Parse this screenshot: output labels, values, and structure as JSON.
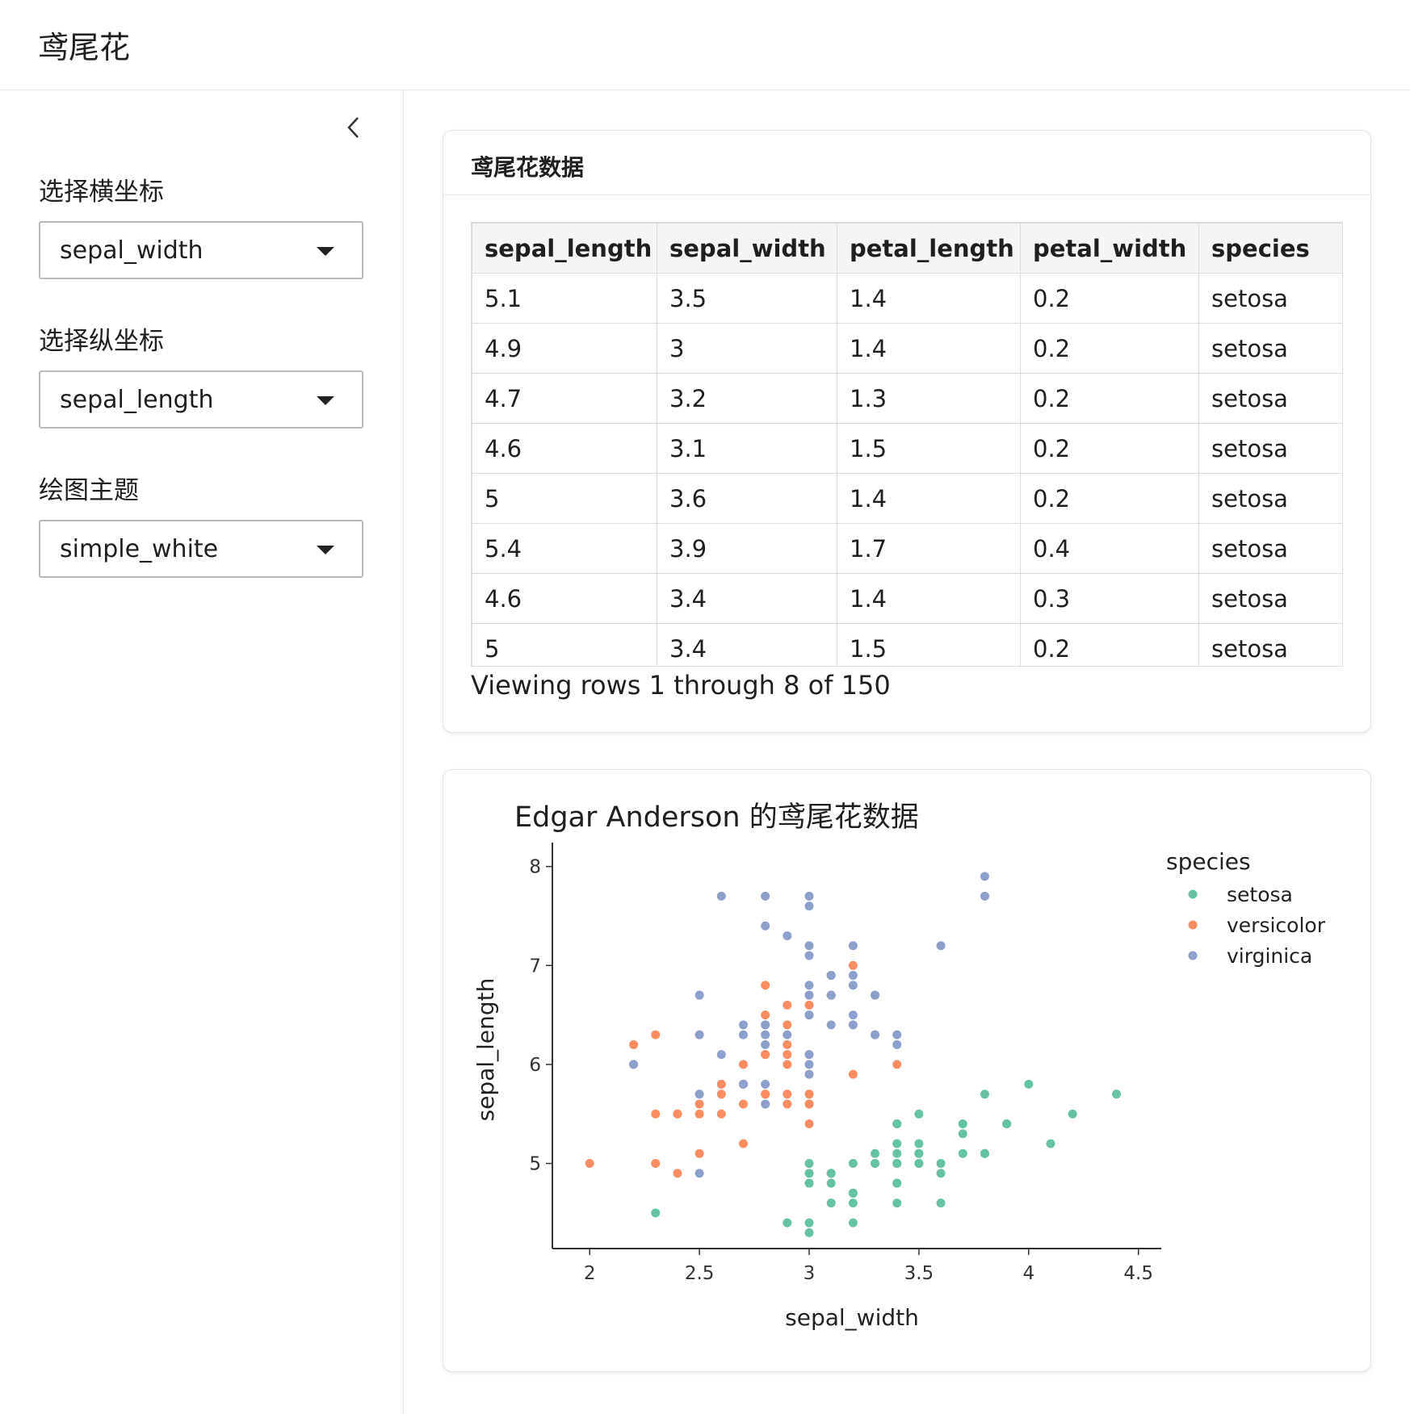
{
  "app": {
    "title": "鸢尾花"
  },
  "sidebar": {
    "controls": [
      {
        "label": "选择横坐标",
        "value": "sepal_width"
      },
      {
        "label": "选择纵坐标",
        "value": "sepal_length"
      },
      {
        "label": "绘图主题",
        "value": "simple_white"
      }
    ]
  },
  "data_card": {
    "title": "鸢尾花数据",
    "columns": [
      "sepal_length",
      "sepal_width",
      "petal_length",
      "petal_width",
      "species"
    ],
    "rows": [
      [
        "5.1",
        "3.5",
        "1.4",
        "0.2",
        "setosa"
      ],
      [
        "4.9",
        "3",
        "1.4",
        "0.2",
        "setosa"
      ],
      [
        "4.7",
        "3.2",
        "1.3",
        "0.2",
        "setosa"
      ],
      [
        "4.6",
        "3.1",
        "1.5",
        "0.2",
        "setosa"
      ],
      [
        "5",
        "3.6",
        "1.4",
        "0.2",
        "setosa"
      ],
      [
        "5.4",
        "3.9",
        "1.7",
        "0.4",
        "setosa"
      ],
      [
        "4.6",
        "3.4",
        "1.4",
        "0.3",
        "setosa"
      ],
      [
        "5",
        "3.4",
        "1.5",
        "0.2",
        "setosa"
      ]
    ],
    "row_info": "Viewing rows 1 through 8 of 150"
  },
  "chart_data": {
    "type": "scatter",
    "title": "Edgar Anderson 的鸢尾花数据",
    "xlabel": "sepal_width",
    "ylabel": "sepal_length",
    "xlim": [
      1.83,
      4.56
    ],
    "ylim": [
      4.14,
      8.16
    ],
    "xticks": [
      2,
      2.5,
      3,
      3.5,
      4,
      4.5
    ],
    "yticks": [
      5,
      6,
      7,
      8
    ],
    "grid": false,
    "legend": {
      "title": "species",
      "position": "right"
    },
    "series": [
      {
        "name": "setosa",
        "color": "#66c2a5",
        "points": [
          [
            3.5,
            5.1
          ],
          [
            3,
            4.9
          ],
          [
            3.2,
            4.7
          ],
          [
            3.1,
            4.6
          ],
          [
            3.6,
            5
          ],
          [
            3.9,
            5.4
          ],
          [
            3.4,
            4.6
          ],
          [
            3.4,
            5
          ],
          [
            2.9,
            4.4
          ],
          [
            3.1,
            4.9
          ],
          [
            3.7,
            5.4
          ],
          [
            3.4,
            4.8
          ],
          [
            3,
            4.8
          ],
          [
            3,
            4.3
          ],
          [
            4,
            5.8
          ],
          [
            4.4,
            5.7
          ],
          [
            3.9,
            5.4
          ],
          [
            3.5,
            5.1
          ],
          [
            3.8,
            5.7
          ],
          [
            3.8,
            5.1
          ],
          [
            3.4,
            5.4
          ],
          [
            3.7,
            5.1
          ],
          [
            3.6,
            4.6
          ],
          [
            3.3,
            5.1
          ],
          [
            3.4,
            4.8
          ],
          [
            3,
            5
          ],
          [
            3.4,
            5
          ],
          [
            3.5,
            5.2
          ],
          [
            3.4,
            5.2
          ],
          [
            3.2,
            4.7
          ],
          [
            3.1,
            4.8
          ],
          [
            3.4,
            5.4
          ],
          [
            4.1,
            5.2
          ],
          [
            4.2,
            5.5
          ],
          [
            3.1,
            4.9
          ],
          [
            3.2,
            5
          ],
          [
            3.5,
            5.5
          ],
          [
            3.6,
            4.9
          ],
          [
            3,
            4.4
          ],
          [
            3.4,
            5.1
          ],
          [
            3.5,
            5
          ],
          [
            2.3,
            4.5
          ],
          [
            3.2,
            4.4
          ],
          [
            3.5,
            5
          ],
          [
            3.8,
            5.1
          ],
          [
            3,
            4.8
          ],
          [
            3.8,
            5.1
          ],
          [
            3.2,
            4.6
          ],
          [
            3.7,
            5.3
          ],
          [
            3.3,
            5
          ]
        ]
      },
      {
        "name": "versicolor",
        "color": "#fc8d62",
        "points": [
          [
            3.2,
            7
          ],
          [
            3.2,
            6.4
          ],
          [
            3.1,
            6.9
          ],
          [
            2.3,
            5.5
          ],
          [
            2.8,
            6.5
          ],
          [
            2.8,
            5.7
          ],
          [
            3.3,
            6.3
          ],
          [
            2.4,
            4.9
          ],
          [
            2.9,
            6.6
          ],
          [
            2.7,
            5.2
          ],
          [
            2,
            5
          ],
          [
            3,
            5.9
          ],
          [
            2.2,
            6
          ],
          [
            2.9,
            6.1
          ],
          [
            2.9,
            5.6
          ],
          [
            3.1,
            6.7
          ],
          [
            3,
            5.6
          ],
          [
            2.7,
            5.8
          ],
          [
            2.2,
            6.2
          ],
          [
            2.5,
            5.6
          ],
          [
            3.2,
            5.9
          ],
          [
            2.8,
            6.1
          ],
          [
            2.5,
            6.3
          ],
          [
            2.8,
            6.1
          ],
          [
            2.9,
            6.4
          ],
          [
            3,
            6.6
          ],
          [
            2.8,
            6.8
          ],
          [
            3,
            6.7
          ],
          [
            2.9,
            6
          ],
          [
            2.6,
            5.7
          ],
          [
            2.4,
            5.5
          ],
          [
            2.4,
            5.5
          ],
          [
            2.7,
            5.8
          ],
          [
            2.7,
            6
          ],
          [
            3,
            5.4
          ],
          [
            3.4,
            6
          ],
          [
            3.1,
            6.7
          ],
          [
            2.3,
            6.3
          ],
          [
            3,
            5.6
          ],
          [
            2.5,
            5.5
          ],
          [
            2.6,
            5.5
          ],
          [
            3,
            6.1
          ],
          [
            2.6,
            5.8
          ],
          [
            2.3,
            5
          ],
          [
            2.7,
            5.6
          ],
          [
            3,
            5.7
          ],
          [
            2.9,
            5.7
          ],
          [
            2.9,
            6.2
          ],
          [
            2.5,
            5.1
          ],
          [
            2.8,
            5.7
          ]
        ]
      },
      {
        "name": "virginica",
        "color": "#8da0cb",
        "points": [
          [
            3.3,
            6.3
          ],
          [
            2.7,
            5.8
          ],
          [
            3,
            7.1
          ],
          [
            2.9,
            6.3
          ],
          [
            3,
            6.5
          ],
          [
            3,
            7.6
          ],
          [
            2.5,
            4.9
          ],
          [
            2.9,
            7.3
          ],
          [
            2.5,
            6.7
          ],
          [
            3.6,
            7.2
          ],
          [
            3.2,
            6.5
          ],
          [
            2.7,
            6.4
          ],
          [
            3,
            6.8
          ],
          [
            2.5,
            5.7
          ],
          [
            2.8,
            5.8
          ],
          [
            3.2,
            6.4
          ],
          [
            3,
            6.5
          ],
          [
            3.8,
            7.7
          ],
          [
            2.6,
            7.7
          ],
          [
            2.2,
            6
          ],
          [
            3.2,
            6.9
          ],
          [
            2.8,
            5.6
          ],
          [
            2.8,
            7.7
          ],
          [
            2.7,
            6.3
          ],
          [
            3.3,
            6.7
          ],
          [
            3.2,
            7.2
          ],
          [
            2.8,
            6.2
          ],
          [
            3,
            6.1
          ],
          [
            2.8,
            6.4
          ],
          [
            3,
            7.2
          ],
          [
            2.8,
            7.4
          ],
          [
            3.8,
            7.9
          ],
          [
            2.8,
            6.4
          ],
          [
            2.8,
            6.3
          ],
          [
            2.6,
            6.1
          ],
          [
            3,
            7.7
          ],
          [
            3.4,
            6.3
          ],
          [
            3.1,
            6.4
          ],
          [
            3,
            6
          ],
          [
            3.1,
            6.9
          ],
          [
            3.1,
            6.7
          ],
          [
            3.1,
            6.9
          ],
          [
            2.7,
            5.8
          ],
          [
            3.2,
            6.8
          ],
          [
            3.3,
            6.7
          ],
          [
            3,
            6.7
          ],
          [
            2.5,
            6.3
          ],
          [
            3,
            6.5
          ],
          [
            3.4,
            6.2
          ],
          [
            3,
            5.9
          ]
        ]
      }
    ]
  }
}
